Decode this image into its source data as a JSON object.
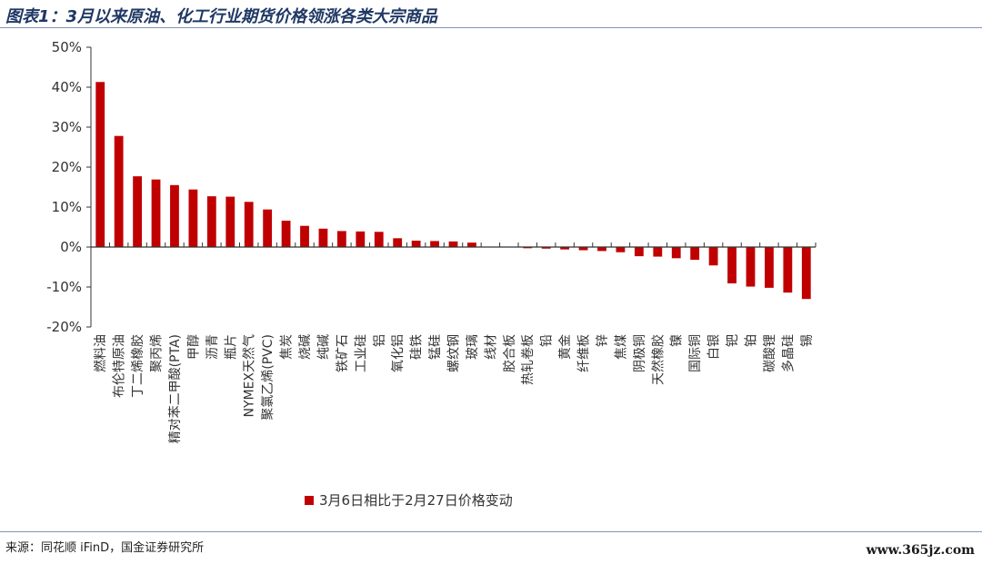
{
  "header": {
    "title": "图表1：3月以来原油、化工行业期货价格领涨各类大宗商品"
  },
  "footer": {
    "source": "来源：同花顺 iFinD，国金证券研究所",
    "watermark": "www.365jz.com"
  },
  "colors": {
    "bar": "#c00000",
    "axis": "#333333",
    "title": "#1f3864"
  },
  "chart_data": {
    "type": "bar",
    "title": "",
    "xlabel": "",
    "ylabel": "",
    "ylim": [
      -20,
      50
    ],
    "yticks": [
      -20,
      -10,
      0,
      10,
      20,
      30,
      40,
      50
    ],
    "ytick_labels": [
      "-20%",
      "-10%",
      "0%",
      "10%",
      "20%",
      "30%",
      "40%",
      "50%"
    ],
    "grid": false,
    "legend_position": "bottom",
    "categories": [
      "燃料油",
      "布伦特原油",
      "丁二烯橡胶",
      "聚丙烯",
      "精对苯二甲酸(PTA)",
      "甲醇",
      "沥青",
      "瓶片",
      "NYMEX天然气",
      "聚氯乙烯(PVC)",
      "焦炭",
      "烧碱",
      "纯碱",
      "铁矿石",
      "工业硅",
      "铝",
      "氧化铝",
      "硅铁",
      "锰硅",
      "螺纹钢",
      "玻璃",
      "线材",
      "胶合板",
      "热轧卷板",
      "铅",
      "黄金",
      "纤维板",
      "锌",
      "焦煤",
      "阴极铜",
      "天然橡胶",
      "镍",
      "国际铜",
      "白银",
      "钯",
      "铂",
      "碳酸锂",
      "多晶硅",
      "锡"
    ],
    "series": [
      {
        "name": "3月6日相比于2月27日价格变动",
        "values": [
          41.3,
          27.8,
          17.7,
          16.9,
          15.5,
          14.4,
          12.7,
          12.6,
          11.3,
          9.4,
          6.6,
          5.3,
          4.6,
          4.0,
          3.9,
          3.8,
          2.2,
          1.6,
          1.5,
          1.4,
          1.1,
          0,
          0,
          -0.3,
          -0.4,
          -0.6,
          -0.8,
          -1.0,
          -1.3,
          -2.3,
          -2.4,
          -2.8,
          -3.2,
          -4.6,
          -9.1,
          -9.9,
          -10.2,
          -11.4,
          -13.0
        ]
      }
    ]
  }
}
